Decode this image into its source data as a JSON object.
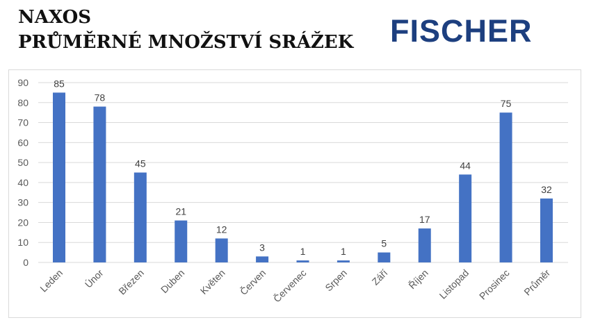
{
  "header": {
    "title_line1": "NAXOS",
    "title_line2": "PRŮMĚRNÉ MNOŽSTVÍ SRÁŽEK",
    "logo_text": "FISCHER"
  },
  "colors": {
    "bar": "#4472c4",
    "logo": "#1d3f7f",
    "gridline": "#d9d9d9"
  },
  "chart_data": {
    "type": "bar",
    "title": "PRŮMĚRNÉ MNOŽSTVÍ SRÁŽEK",
    "xlabel": "",
    "ylabel": "",
    "categories": [
      "Leden",
      "Únor",
      "Březen",
      "Duben",
      "Květen",
      "Červen",
      "Červenec",
      "Srpen",
      "Září",
      "Říjen",
      "Listopad",
      "Prosinec",
      "Průměr"
    ],
    "values": [
      85,
      78,
      45,
      21,
      12,
      3,
      1,
      1,
      5,
      17,
      44,
      75,
      32
    ],
    "ylim": [
      0,
      90
    ],
    "yticks": [
      0,
      10,
      20,
      30,
      40,
      50,
      60,
      70,
      80,
      90
    ],
    "grid": true,
    "legend": null,
    "data_labels": true
  }
}
